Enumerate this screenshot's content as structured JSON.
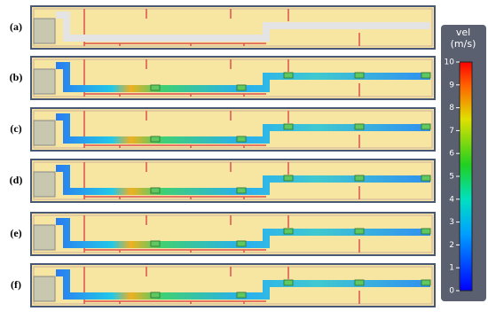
{
  "panels": [
    "(a)",
    "(b)",
    "(c)",
    "(d)",
    "(e)",
    "(f)"
  ],
  "colorbar": {
    "title": "vel",
    "unit": "(m/s)",
    "lim": [
      0,
      10
    ],
    "ticks": [
      0,
      1,
      2,
      3,
      4,
      5,
      6,
      7,
      8,
      9,
      10
    ]
  }
}
